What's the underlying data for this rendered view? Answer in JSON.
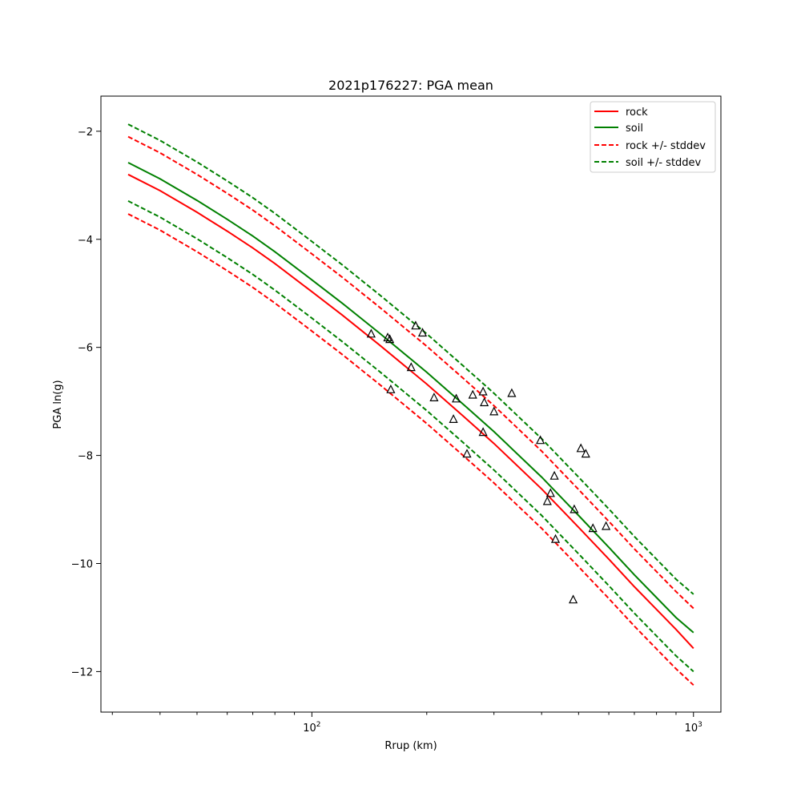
{
  "chart_data": {
    "type": "line",
    "title": "2021p176227: PGA mean",
    "xlabel": "Rrup (km)",
    "ylabel": "PGA ln(g)",
    "x_scale": "log",
    "xlim": [
      28,
      1180
    ],
    "ylim": [
      -12.75,
      -1.35
    ],
    "x_ticks": [
      {
        "value": 100,
        "base": "10",
        "exp": "2"
      },
      {
        "value": 1000,
        "base": "10",
        "exp": "3"
      }
    ],
    "y_ticks": [
      {
        "value": -2,
        "label": "−2"
      },
      {
        "value": -4,
        "label": "−4"
      },
      {
        "value": -6,
        "label": "−6"
      },
      {
        "value": -8,
        "label": "−8"
      },
      {
        "value": -10,
        "label": "−10"
      },
      {
        "value": -12,
        "label": "−12"
      }
    ],
    "grid": false,
    "legend_position": "top-right",
    "series": [
      {
        "name": "rock",
        "color": "#ff0000",
        "style": "solid",
        "x": [
          33,
          40,
          50,
          60,
          70,
          80,
          100,
          120,
          150,
          200,
          250,
          300,
          400,
          500,
          600,
          700,
          800,
          900,
          1000
        ],
        "y": [
          -2.8,
          -3.1,
          -3.5,
          -3.85,
          -4.16,
          -4.45,
          -4.97,
          -5.4,
          -5.95,
          -6.68,
          -7.28,
          -7.78,
          -8.62,
          -9.33,
          -9.92,
          -10.43,
          -10.85,
          -11.22,
          -11.57
        ]
      },
      {
        "name": "soil",
        "color": "#008000",
        "style": "solid",
        "x": [
          33,
          40,
          50,
          60,
          70,
          80,
          100,
          120,
          150,
          200,
          250,
          300,
          400,
          500,
          600,
          700,
          800,
          900,
          1000
        ],
        "y": [
          -2.58,
          -2.88,
          -3.28,
          -3.63,
          -3.94,
          -4.23,
          -4.75,
          -5.18,
          -5.73,
          -6.46,
          -7.06,
          -7.56,
          -8.4,
          -9.11,
          -9.7,
          -10.21,
          -10.63,
          -11.0,
          -11.28
        ]
      },
      {
        "name": "rock +/- stddev",
        "color": "#ff0000",
        "style": "dashed",
        "x": [
          33,
          40,
          50,
          60,
          70,
          80,
          100,
          120,
          150,
          200,
          250,
          300,
          400,
          500,
          600,
          700,
          800,
          900,
          1000
        ],
        "y": [
          -2.1,
          -2.4,
          -2.8,
          -3.15,
          -3.46,
          -3.75,
          -4.27,
          -4.7,
          -5.25,
          -5.98,
          -6.58,
          -7.08,
          -7.92,
          -8.63,
          -9.22,
          -9.73,
          -10.15,
          -10.52,
          -10.83
        ]
      },
      {
        "name": "",
        "color": "#ff0000",
        "style": "dashed",
        "x": [
          33,
          40,
          50,
          60,
          70,
          80,
          100,
          120,
          150,
          200,
          250,
          300,
          400,
          500,
          600,
          700,
          800,
          900,
          1000
        ],
        "y": [
          -3.53,
          -3.83,
          -4.23,
          -4.58,
          -4.89,
          -5.18,
          -5.7,
          -6.13,
          -6.68,
          -7.41,
          -8.01,
          -8.51,
          -9.35,
          -10.06,
          -10.65,
          -11.16,
          -11.58,
          -11.95,
          -12.25
        ]
      },
      {
        "name": "soil +/- stddev",
        "color": "#008000",
        "style": "dashed",
        "x": [
          33,
          40,
          50,
          60,
          70,
          80,
          100,
          120,
          150,
          200,
          250,
          300,
          400,
          500,
          600,
          700,
          800,
          900,
          1000
        ],
        "y": [
          -1.87,
          -2.17,
          -2.57,
          -2.92,
          -3.23,
          -3.52,
          -4.04,
          -4.47,
          -5.02,
          -5.75,
          -6.35,
          -6.85,
          -7.69,
          -8.4,
          -8.99,
          -9.5,
          -9.92,
          -10.29,
          -10.57
        ]
      },
      {
        "name": "",
        "color": "#008000",
        "style": "dashed",
        "x": [
          33,
          40,
          50,
          60,
          70,
          80,
          100,
          120,
          150,
          200,
          250,
          300,
          400,
          500,
          600,
          700,
          800,
          900,
          1000
        ],
        "y": [
          -3.29,
          -3.59,
          -3.99,
          -4.34,
          -4.65,
          -4.94,
          -5.46,
          -5.89,
          -6.44,
          -7.17,
          -7.77,
          -8.27,
          -9.11,
          -9.82,
          -10.41,
          -10.92,
          -11.34,
          -11.71,
          -12.0
        ]
      }
    ],
    "observations": {
      "marker": "triangle-open",
      "color": "#000000",
      "x": [
        143,
        158,
        160,
        161,
        182,
        187,
        195,
        209,
        235,
        239,
        255,
        264,
        281,
        281,
        283,
        300,
        334,
        397,
        414,
        422,
        432,
        435,
        484,
        487,
        507,
        522,
        545,
        590
      ],
      "y": [
        -5.75,
        -5.82,
        -5.85,
        -6.78,
        -6.37,
        -5.6,
        -5.73,
        -6.93,
        -7.33,
        -6.95,
        -7.97,
        -6.88,
        -7.57,
        -6.82,
        -7.02,
        -7.19,
        -6.85,
        -7.72,
        -8.85,
        -8.7,
        -8.38,
        -9.55,
        -10.67,
        -9.0,
        -7.87,
        -7.97,
        -9.35,
        -9.31
      ]
    }
  }
}
